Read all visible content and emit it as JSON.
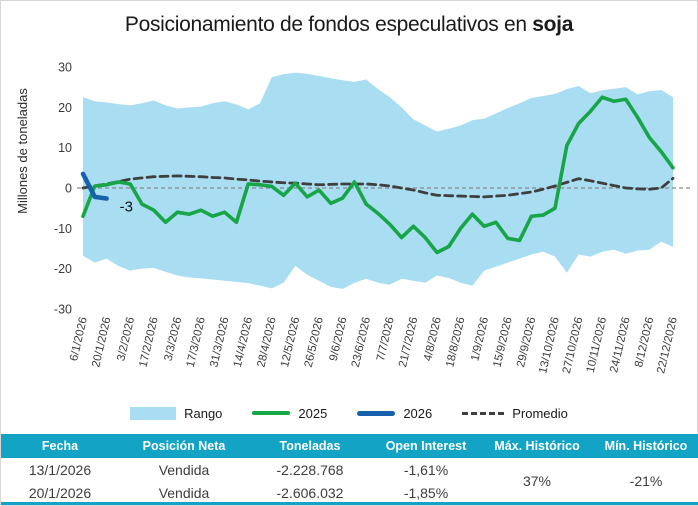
{
  "title": {
    "prefix": "Posicionamiento de fondos especulativos en ",
    "bold": "soja"
  },
  "legend": {
    "items": [
      {
        "label": "Rango",
        "color": "#a8ddf2",
        "style": "area"
      },
      {
        "label": "2025",
        "color": "#17a548",
        "style": "line"
      },
      {
        "label": "2026",
        "color": "#1661ac",
        "style": "line"
      },
      {
        "label": "Promedio",
        "color": "#3f3f3f",
        "style": "dashed"
      }
    ]
  },
  "chart_data": {
    "type": "line",
    "title": "Posicionamiento de fondos especulativos en soja",
    "ylabel": "Millones de toneladas",
    "ylim": [
      -30,
      30
    ],
    "yticks": [
      30,
      20,
      10,
      0,
      -10,
      -20,
      -30
    ],
    "grid": false,
    "zero_line": true,
    "legend_position": "bottom",
    "x_tick_labels": [
      "6/1/2026",
      "20/1/2026",
      "3/2/2026",
      "17/2/2026",
      "3/3/2026",
      "17/3/2026",
      "31/3/2026",
      "14/4/2026",
      "28/4/2026",
      "12/5/2026",
      "26/5/2026",
      "9/6/2026",
      "23/6/2026",
      "7/7/2026",
      "21/7/2026",
      "4/8/2026",
      "18/8/2026",
      "1/9/2026",
      "15/9/2026",
      "29/9/2026",
      "13/10/2026",
      "27/10/2026",
      "10/11/2026",
      "24/11/2026",
      "8/12/2026",
      "22/12/2026"
    ],
    "points_per_tick": 2,
    "series": [
      {
        "name": "Rango",
        "type": "band",
        "color": "#a8ddf2",
        "upper": [
          22.5,
          21.5,
          21.2,
          20.8,
          20.5,
          21,
          21.7,
          20.5,
          19.7,
          20,
          20.2,
          21,
          21.5,
          20.7,
          19.5,
          21,
          27.5,
          28.2,
          28.6,
          28.3,
          27.8,
          27.2,
          26.7,
          26.3,
          26.9,
          24.5,
          22.5,
          20,
          17,
          15.5,
          14,
          14.7,
          15.5,
          16.8,
          17.2,
          18.5,
          19.8,
          21,
          22.3,
          22.8,
          23.3,
          24.5,
          25.3,
          23.5,
          24.2,
          24.6,
          25,
          23.2,
          24,
          24.3,
          22.5
        ],
        "lower": [
          -16.8,
          -18.5,
          -17.5,
          -19.3,
          -20.5,
          -20,
          -19.8,
          -20.8,
          -21.7,
          -22.2,
          -22.4,
          -22.7,
          -23,
          -23.3,
          -23.6,
          -24.2,
          -24.9,
          -23.5,
          -19.3,
          -21.5,
          -23,
          -24.5,
          -25,
          -23.5,
          -22.5,
          -23.5,
          -24,
          -22.5,
          -23,
          -23.5,
          -21.7,
          -22.3,
          -23.5,
          -24.2,
          -20.5,
          -19.5,
          -18.5,
          -17.5,
          -16.5,
          -15.8,
          -17,
          -21,
          -16.5,
          -17,
          -15.8,
          -15.3,
          -16.3,
          -15.5,
          -15.3,
          -13.3,
          -14.6
        ]
      },
      {
        "name": "Promedio",
        "type": "dashed-line",
        "color": "#3f3f3f",
        "values": [
          0,
          0.5,
          1,
          1.6,
          2.2,
          2.5,
          2.8,
          2.9,
          3,
          2.9,
          2.8,
          2.6,
          2.5,
          2.2,
          2,
          1.7,
          1.5,
          1.3,
          1.2,
          1,
          0.8,
          0.9,
          1,
          1,
          1,
          0.8,
          0.5,
          0,
          -0.5,
          -1.2,
          -1.8,
          -1.9,
          -2,
          -2.1,
          -2.2,
          -2,
          -1.8,
          -1.4,
          -1,
          -0.3,
          0.5,
          1.4,
          2.3,
          1.8,
          1.2,
          0.6,
          0,
          -0.2,
          -0.3,
          0,
          2.4
        ]
      },
      {
        "name": "2025",
        "type": "line",
        "color": "#17a548",
        "values": [
          -7,
          0.5,
          0.8,
          1.5,
          1,
          -4,
          -5.5,
          -8.5,
          -6,
          -6.5,
          -5.5,
          -7,
          -6,
          -8.5,
          1,
          0.8,
          0.4,
          -1.8,
          1.2,
          -2.2,
          -0.5,
          -3.8,
          -2.5,
          1.5,
          -4,
          -6.3,
          -9,
          -12.3,
          -9.5,
          -12.3,
          -16,
          -14.5,
          -10,
          -6.5,
          -9.5,
          -8.5,
          -12.5,
          -13,
          -7,
          -6.7,
          -5,
          10.5,
          16,
          19,
          22.5,
          21.5,
          22,
          17.5,
          12.5,
          9,
          5
        ]
      },
      {
        "name": "2026",
        "type": "line",
        "color": "#1661ac",
        "values": [
          3.5,
          -2.2,
          -2.6
        ]
      }
    ],
    "annotation": {
      "text": "-3",
      "series": "2026",
      "point_index": 2
    }
  },
  "table": {
    "header_bg": "#13a3c5",
    "headers": [
      "Fecha",
      "Posición Neta",
      "Toneladas",
      "Open Interest",
      "Máx. Histórico",
      "Mín. Histórico"
    ],
    "rows": [
      {
        "fecha": "13/1/2026",
        "posicion_neta": "Vendida",
        "toneladas": "-2.228.768",
        "open_interest": "-1,61%"
      },
      {
        "fecha": "20/1/2026",
        "posicion_neta": "Vendida",
        "toneladas": "-2.606.032",
        "open_interest": "-1,85%"
      }
    ],
    "max_historico": "37%",
    "min_historico": "-21%"
  }
}
